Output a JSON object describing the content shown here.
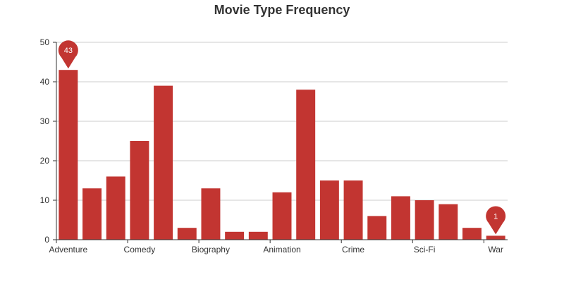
{
  "chart_data": {
    "type": "bar",
    "title": "Movie Type Frequency",
    "xlabel": "",
    "ylabel": "",
    "ylim": [
      0,
      50
    ],
    "yticks": [
      0,
      10,
      20,
      30,
      40,
      50
    ],
    "grid": true,
    "legend": "none",
    "bar_color": "#c23531",
    "values": [
      43,
      13,
      16,
      25,
      39,
      3,
      13,
      2,
      2,
      12,
      38,
      15,
      15,
      6,
      11,
      10,
      9,
      3,
      1
    ],
    "shown_tick_labels": [
      {
        "index": 0,
        "label": "Adventure"
      },
      {
        "index": 3,
        "label": "Comedy"
      },
      {
        "index": 6,
        "label": "Biography"
      },
      {
        "index": 9,
        "label": "Animation"
      },
      {
        "index": 12,
        "label": "Crime"
      },
      {
        "index": 15,
        "label": "Sci-Fi"
      },
      {
        "index": 18,
        "label": "War"
      }
    ],
    "mark_points": [
      {
        "type": "max",
        "index": 0,
        "value": 43
      },
      {
        "type": "min",
        "index": 18,
        "value": 1
      }
    ]
  }
}
